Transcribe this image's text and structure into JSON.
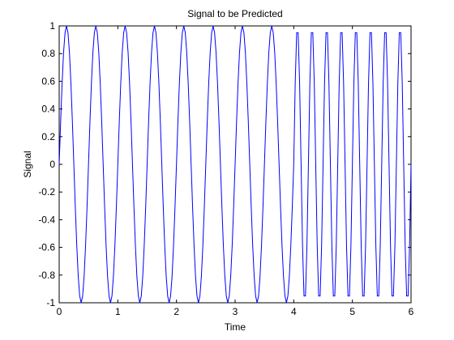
{
  "chart_data": {
    "type": "line",
    "title": "Signal to be Predicted",
    "xlabel": "Time",
    "ylabel": "Signal",
    "xlim": [
      0,
      6
    ],
    "ylim": [
      -1,
      1
    ],
    "grid": false,
    "legend": "none",
    "x_ticks": [
      "0",
      "1",
      "2",
      "3",
      "4",
      "5",
      "6"
    ],
    "y_ticks": [
      "-1",
      "-0.8",
      "-0.6",
      "-0.4",
      "-0.2",
      "0",
      "0.2",
      "0.4",
      "0.6",
      "0.8",
      "1"
    ],
    "series": [
      {
        "color": "#0000ff",
        "segments": [
          {
            "x_range": [
              0,
              4
            ],
            "sample_step": 0.025,
            "formula": "sin(4*pi*t)",
            "amplitude": 1.0,
            "frequency_hz": 2
          },
          {
            "x_range": [
              4,
              6
            ],
            "sample_step": 0.025,
            "formula": "sin(8*pi*t)",
            "amplitude": 1.0,
            "frequency_hz": 4
          }
        ]
      }
    ]
  }
}
